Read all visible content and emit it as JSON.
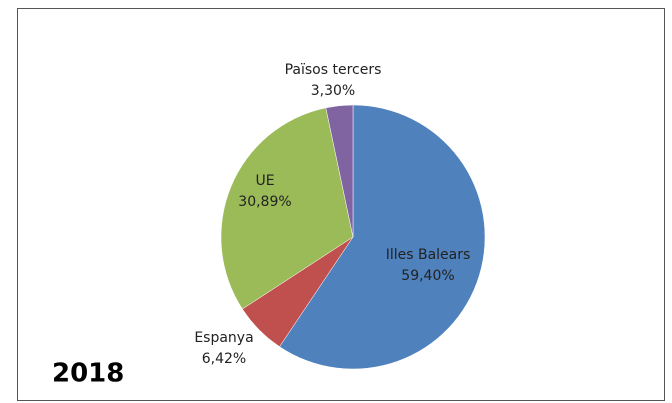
{
  "chart_data": {
    "type": "pie",
    "annotation": "2018",
    "categories": [
      "Illes Balears",
      "Espanya",
      "UE",
      "Països tercers"
    ],
    "values": [
      59.4,
      6.42,
      30.89,
      3.3
    ],
    "value_labels": [
      "59,40%",
      "6,42%",
      "30,89%",
      "3,30%"
    ],
    "colors": [
      "#4f81bd",
      "#c0504d",
      "#9bbb59",
      "#8064a2"
    ]
  }
}
